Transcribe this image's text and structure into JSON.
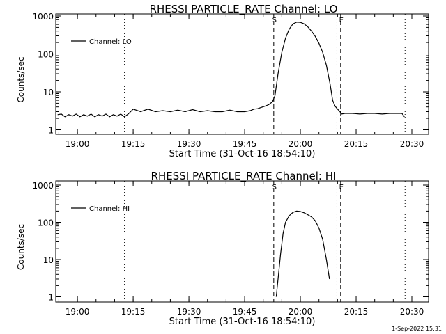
{
  "footer": {
    "timestamp": "1-Sep-2022 15:31"
  },
  "chart_data": [
    {
      "type": "line",
      "title": "RHESSI PARTICLE_RATE Channel: LO",
      "xlabel": "Start Time (31-Oct-16 18:54:10)",
      "ylabel": "Counts/sec",
      "yscale": "log",
      "ylim": [
        1,
        1000
      ],
      "xlim": [
        "18:54:10",
        "20:34:30"
      ],
      "xticks": [
        "19:00",
        "19:15",
        "19:30",
        "19:45",
        "20:00",
        "20:15",
        "20:30"
      ],
      "yticks": [
        "1",
        "10",
        "100",
        "1000"
      ],
      "legend": {
        "entries": [
          "Channel: LO"
        ],
        "placement": "upper-left"
      },
      "vlines": [
        {
          "x": "19:12:40",
          "style": "dotted",
          "label": ""
        },
        {
          "x": "19:52:50",
          "style": "dashed",
          "label": "S"
        },
        {
          "x": "20:09:50",
          "style": "dotted",
          "label": ""
        },
        {
          "x": "20:10:50",
          "style": "dashed",
          "label": "E"
        },
        {
          "x": "20:28:10",
          "style": "dotted",
          "label": ""
        }
      ],
      "series": [
        {
          "name": "Channel: LO",
          "x": [
            "18:54:40",
            "18:55:40",
            "18:56:40",
            "18:57:40",
            "18:58:40",
            "18:59:40",
            "19:00:40",
            "19:01:40",
            "19:02:40",
            "19:03:40",
            "19:04:40",
            "19:05:40",
            "19:06:40",
            "19:07:40",
            "19:08:40",
            "19:09:40",
            "19:10:40",
            "19:11:40",
            "19:12:40",
            "19:13:40",
            "19:15:00",
            "19:17:00",
            "19:19:00",
            "19:21:00",
            "19:23:00",
            "19:25:00",
            "19:27:00",
            "19:29:00",
            "19:31:00",
            "19:33:00",
            "19:35:00",
            "19:37:00",
            "19:39:00",
            "19:41:00",
            "19:43:00",
            "19:45:00",
            "19:46:30",
            "19:47:30",
            "19:48:30",
            "19:49:30",
            "19:50:30",
            "19:51:30",
            "19:52:30",
            "19:53:10",
            "19:54:00",
            "19:55:00",
            "19:56:00",
            "19:57:00",
            "19:58:00",
            "19:59:00",
            "20:00:00",
            "20:01:00",
            "20:02:00",
            "20:03:00",
            "20:04:00",
            "20:05:00",
            "20:06:00",
            "20:07:00",
            "20:08:00",
            "20:08:40",
            "20:09:20",
            "20:10:00",
            "20:10:40",
            "20:11:00",
            "20:12:00",
            "20:14:00",
            "20:16:00",
            "20:18:00",
            "20:20:00",
            "20:22:00",
            "20:24:00",
            "20:26:00",
            "20:27:20",
            "20:28:00"
          ],
          "y": [
            2.5,
            2.6,
            2.2,
            2.5,
            2.3,
            2.6,
            2.2,
            2.5,
            2.3,
            2.6,
            2.2,
            2.5,
            2.3,
            2.6,
            2.2,
            2.5,
            2.3,
            2.6,
            2.2,
            2.6,
            3.5,
            3.0,
            3.5,
            3.0,
            3.2,
            3.0,
            3.3,
            3.0,
            3.4,
            3.0,
            3.2,
            3.0,
            3.0,
            3.3,
            3.0,
            3.0,
            3.2,
            3.5,
            3.6,
            3.9,
            4.2,
            4.6,
            5.5,
            8,
            30,
            110,
            260,
            450,
            620,
            690,
            680,
            620,
            520,
            400,
            290,
            190,
            110,
            50,
            16,
            6,
            4.2,
            3.5,
            3.0,
            2.6,
            2.7,
            2.7,
            2.6,
            2.7,
            2.7,
            2.6,
            2.7,
            2.7,
            2.7,
            2.2
          ]
        }
      ]
    },
    {
      "type": "line",
      "title": "RHESSI PARTICLE_RATE Channel: HI",
      "xlabel": "Start Time (31-Oct-16 18:54:10)",
      "ylabel": "Counts/sec",
      "yscale": "log",
      "ylim": [
        1,
        1000
      ],
      "xlim": [
        "18:54:10",
        "20:34:30"
      ],
      "xticks": [
        "19:00",
        "19:15",
        "19:30",
        "19:45",
        "20:00",
        "20:15",
        "20:30"
      ],
      "yticks": [
        "1",
        "10",
        "100",
        "1000"
      ],
      "legend": {
        "entries": [
          "Channel: HI"
        ],
        "placement": "upper-left"
      },
      "vlines": [
        {
          "x": "19:12:40",
          "style": "dotted",
          "label": ""
        },
        {
          "x": "19:52:50",
          "style": "dashed",
          "label": "S"
        },
        {
          "x": "20:09:50",
          "style": "dotted",
          "label": ""
        },
        {
          "x": "20:10:50",
          "style": "dashed",
          "label": "E"
        },
        {
          "x": "20:28:10",
          "style": "dotted",
          "label": ""
        }
      ],
      "series": [
        {
          "name": "Channel: HI",
          "x": [
            "19:53:30",
            "19:54:00",
            "19:54:40",
            "19:55:20",
            "19:56:00",
            "19:57:00",
            "19:58:00",
            "19:59:00",
            "20:00:00",
            "20:01:00",
            "20:02:00",
            "20:03:00",
            "20:04:00",
            "20:05:00",
            "20:06:00",
            "20:07:00",
            "20:07:50"
          ],
          "y": [
            1,
            3,
            14,
            50,
            100,
            150,
            185,
            200,
            195,
            180,
            160,
            140,
            110,
            70,
            35,
            10,
            3
          ]
        }
      ]
    }
  ]
}
